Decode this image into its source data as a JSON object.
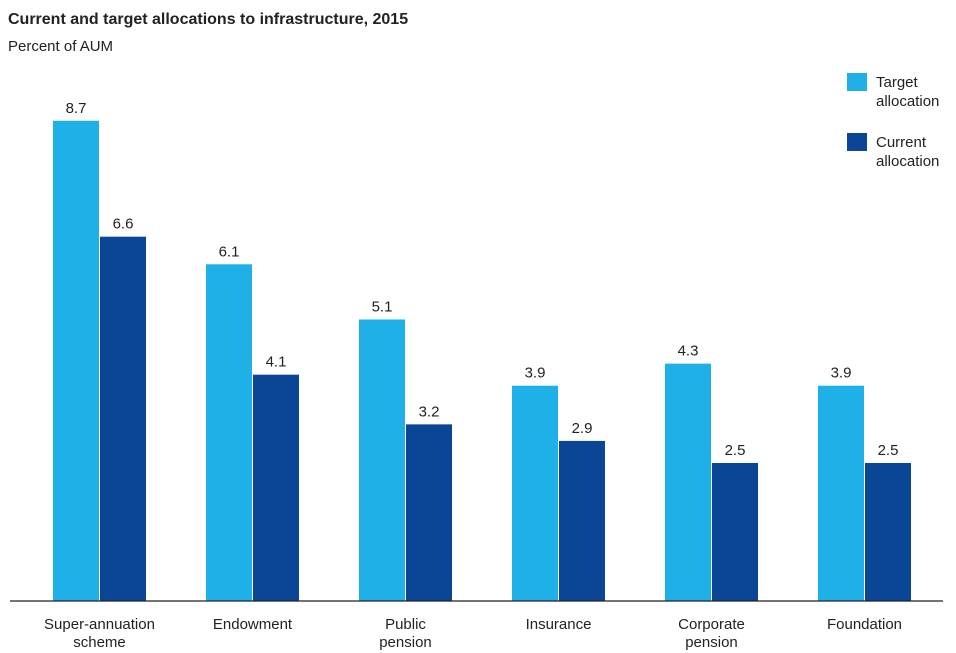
{
  "chart_data": {
    "type": "bar",
    "title": "Current and target allocations to infrastructure, 2015",
    "subtitle": "Percent of AUM",
    "categories": [
      [
        "Super-annuation",
        "scheme"
      ],
      [
        "Endowment"
      ],
      [
        "Public",
        "pension"
      ],
      [
        "Insurance"
      ],
      [
        "Corporate",
        "pension"
      ],
      [
        "Foundation"
      ]
    ],
    "series": [
      {
        "name": "Target allocation",
        "legend_lines": [
          "Target",
          "allocation"
        ],
        "color": "#20B0E8",
        "values": [
          8.7,
          6.1,
          5.1,
          3.9,
          4.3,
          3.9
        ]
      },
      {
        "name": "Current allocation",
        "legend_lines": [
          "Current",
          "allocation"
        ],
        "color": "#0B4595",
        "values": [
          6.6,
          4.1,
          3.2,
          2.9,
          2.5,
          2.5
        ]
      }
    ],
    "ylim": [
      0,
      10
    ],
    "grid": false,
    "legend_position": "top-right",
    "value_decimals": 1
  }
}
